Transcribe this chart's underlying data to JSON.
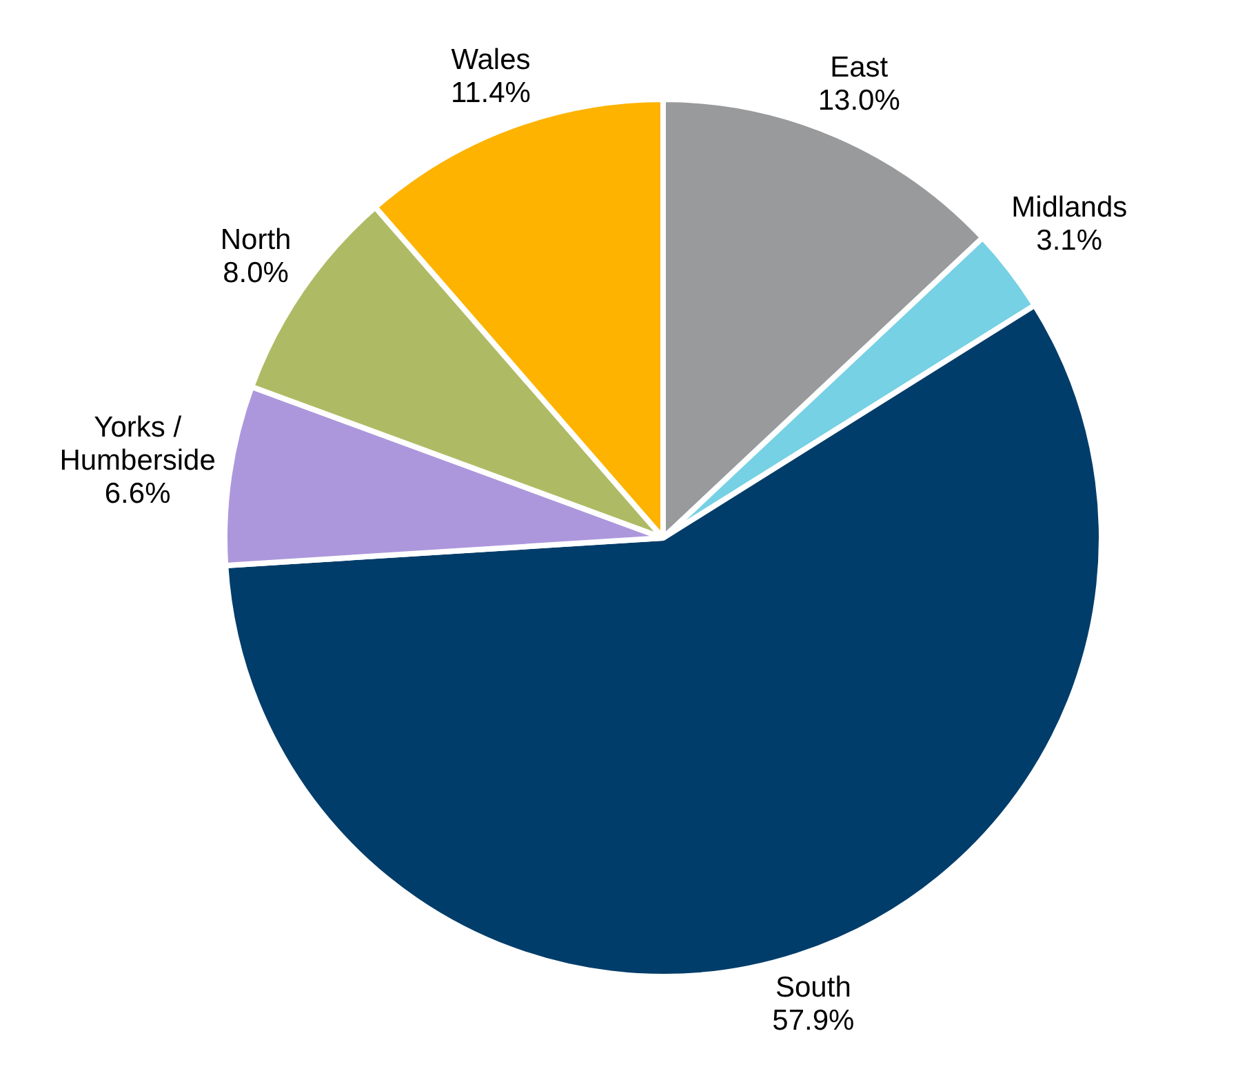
{
  "chart_data": {
    "type": "pie",
    "categories": [
      "East",
      "Midlands",
      "South",
      "Yorks / Humberside",
      "North",
      "Wales"
    ],
    "values": [
      13.0,
      3.1,
      57.9,
      6.6,
      8.0,
      11.4
    ],
    "colors": [
      "#999a9c",
      "#75d1e3",
      "#003d6a",
      "#ad97dc",
      "#afbb64",
      "#fdb300"
    ],
    "value_labels": [
      "13.0%",
      "3.1%",
      "57.9%",
      "6.6%",
      "8.0%",
      "11.4%"
    ],
    "legend": false
  }
}
